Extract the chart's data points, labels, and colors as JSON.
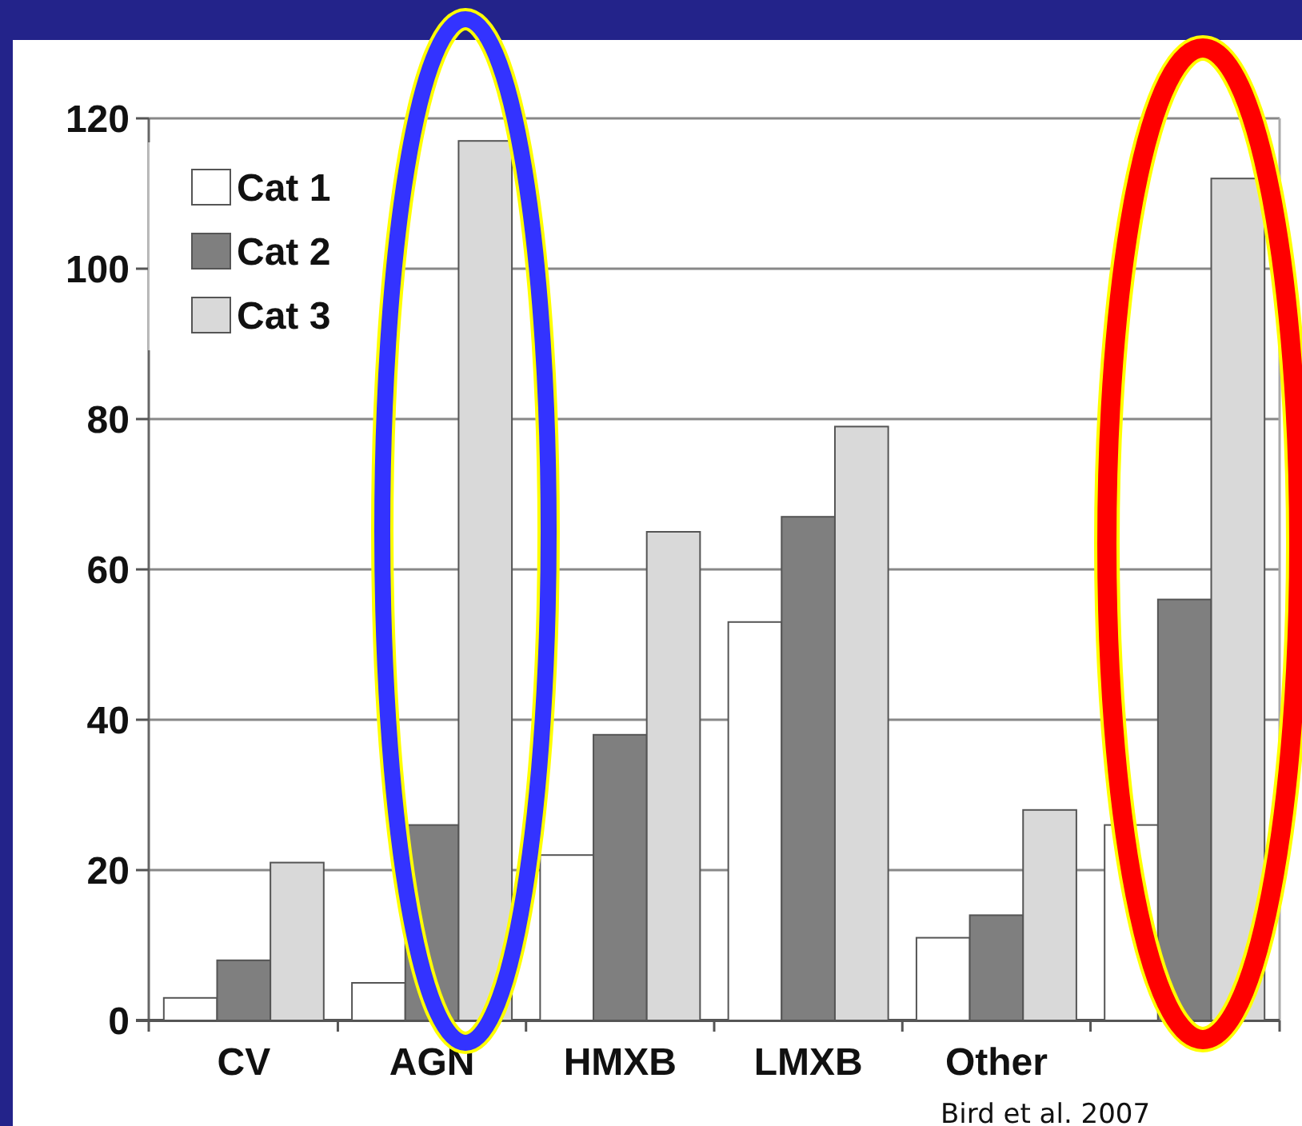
{
  "chart_data": {
    "type": "bar",
    "categories": [
      "CV",
      "AGN",
      "HMXB",
      "LMXB",
      "Other",
      null
    ],
    "series": [
      {
        "name": "Cat 1",
        "color": "#ffffff",
        "values": [
          3,
          5,
          22,
          53,
          11,
          26
        ]
      },
      {
        "name": "Cat 2",
        "color": "#7f7f7f",
        "values": [
          8,
          26,
          38,
          67,
          14,
          56
        ]
      },
      {
        "name": "Cat 3",
        "color": "#d9d9d9",
        "values": [
          21,
          117,
          65,
          79,
          28,
          112
        ]
      }
    ],
    "ylim": [
      0,
      120
    ],
    "yticks": [
      0,
      20,
      40,
      60,
      80,
      100,
      120
    ],
    "grid": "y",
    "legend": "top left",
    "annotations": [
      "Bird et al. 2007"
    ]
  }
}
